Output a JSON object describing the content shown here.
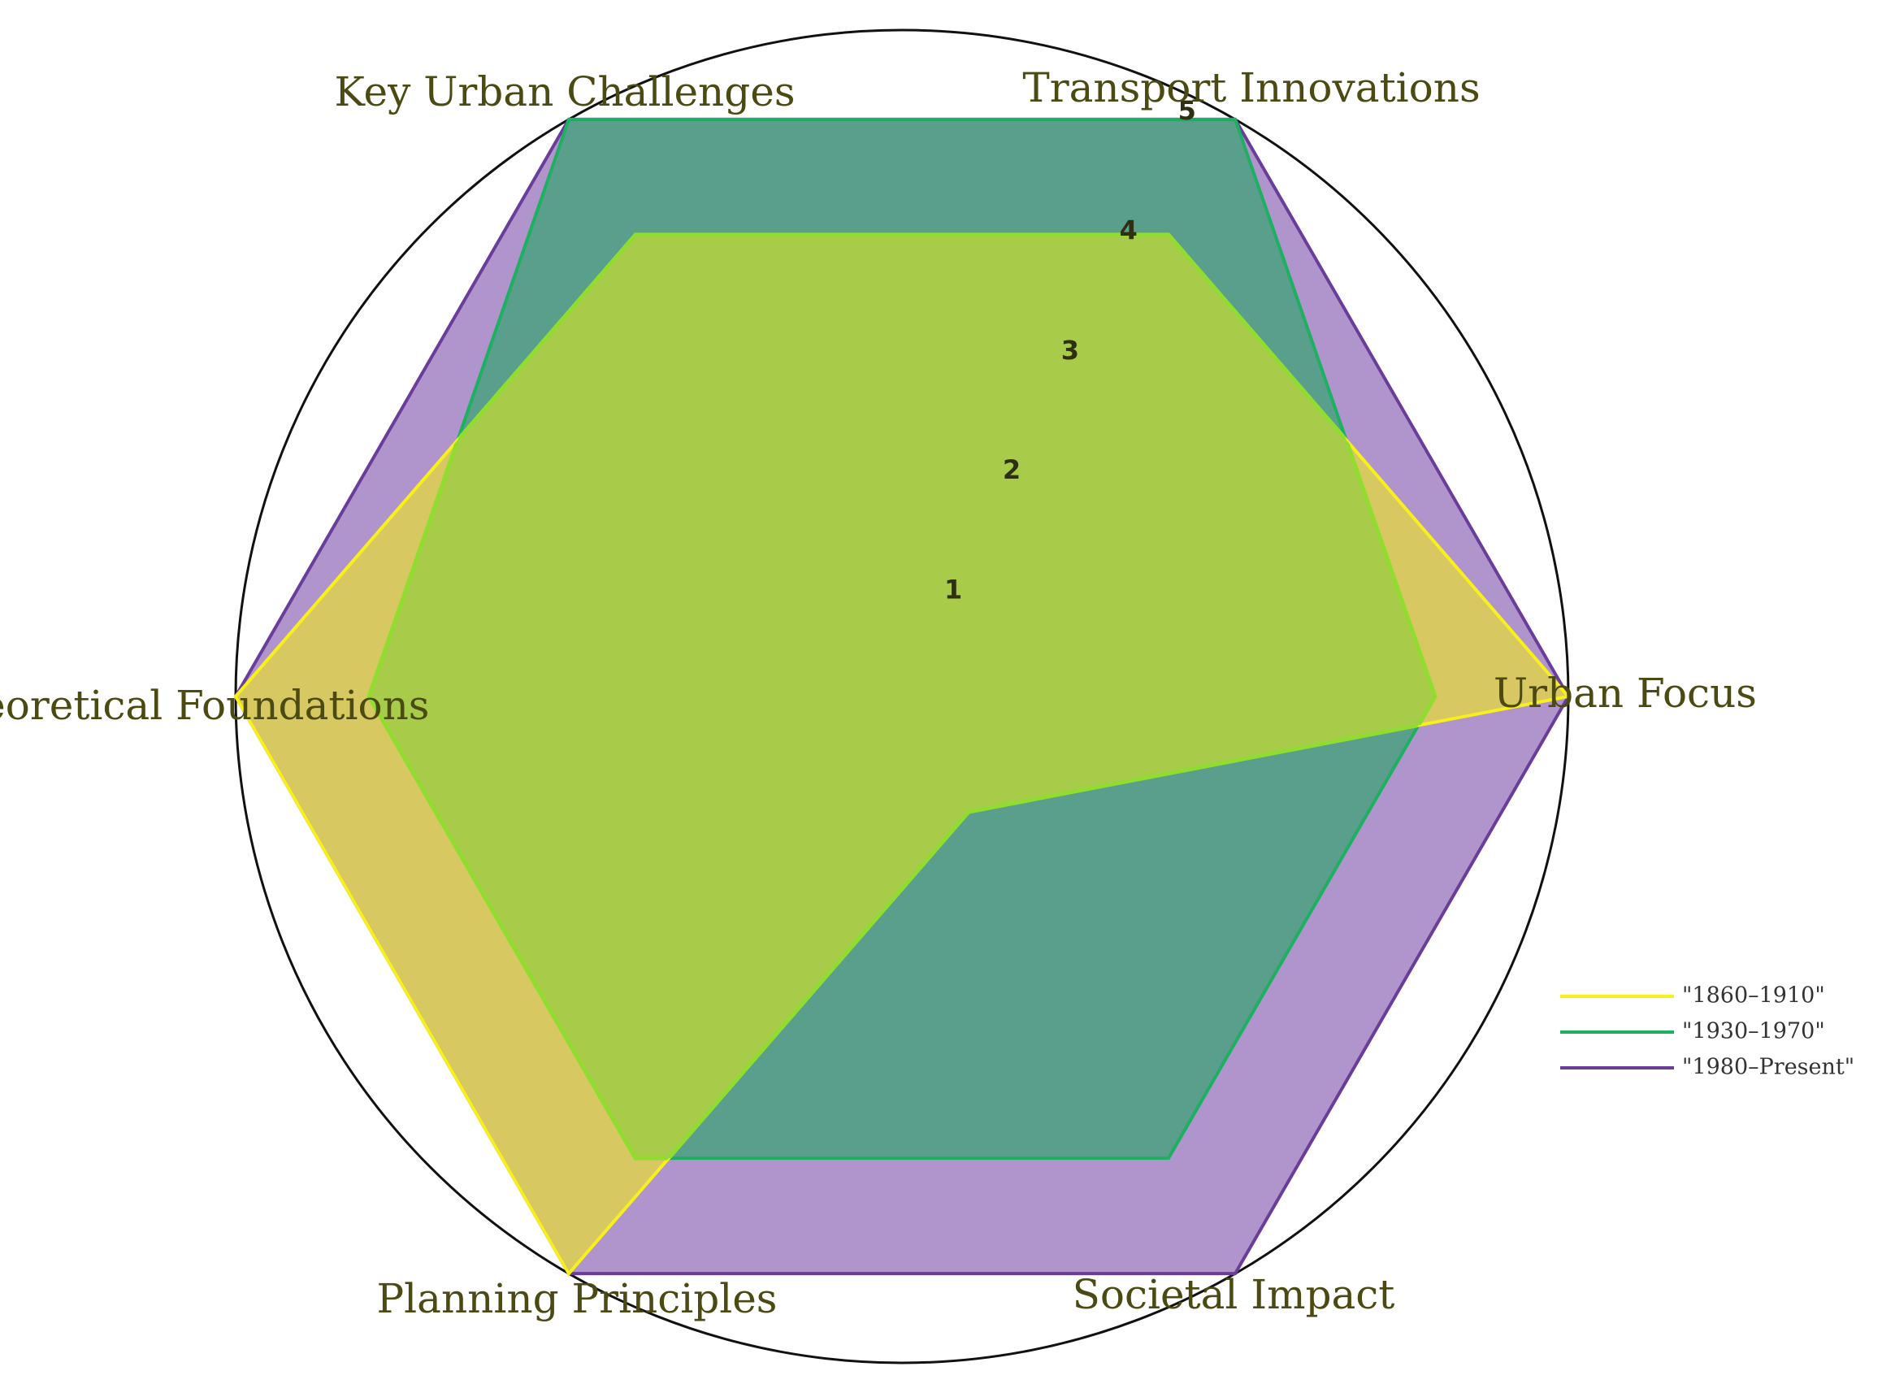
{
  "chart_data": {
    "type": "radar",
    "title": "",
    "axes": [
      "Urban Focus",
      "Transport Innovations",
      "Key Urban Challenges",
      "Theoretical Foundations",
      "Planning Principles",
      "Societal Impact"
    ],
    "rlim": [
      0,
      5
    ],
    "tick_values": [
      1,
      2,
      3,
      4,
      5
    ],
    "tick_labels": [
      "1",
      "2",
      "3",
      "4",
      "5"
    ],
    "grid": true,
    "legend_position": "bottom-right",
    "series": [
      {
        "name": "\"1980–Present\"",
        "values": [
          5,
          5,
          5,
          5,
          5,
          5
        ],
        "color": "#6a3d9a",
        "fill": "#b095cc"
      },
      {
        "name": "\"1930–1970\"",
        "values": [
          4,
          5,
          5,
          4,
          4,
          4
        ],
        "color": "#1db060",
        "fill": "#5a9e8c"
      },
      {
        "name": "\"1860–1910\"",
        "values": [
          5,
          4,
          4,
          5,
          5,
          1
        ],
        "color": "#f7f01a",
        "fill": "#d8c862"
      }
    ],
    "overlap_color": "#a8cc4a",
    "overlap_stroke": "#90dd30",
    "legend_order": [
      2,
      1,
      0
    ]
  }
}
